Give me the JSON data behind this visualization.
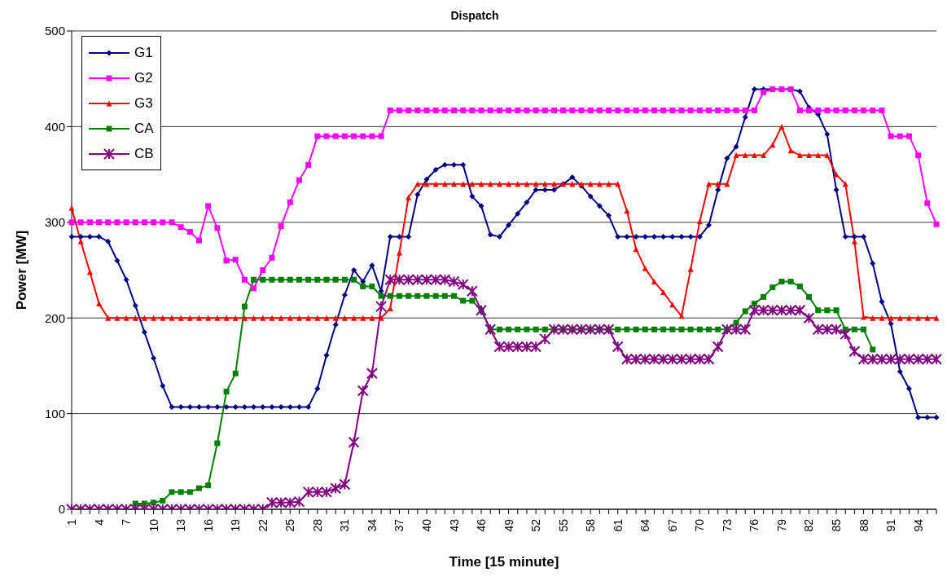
{
  "chart_data": {
    "type": "line",
    "title": "Dispatch",
    "xlabel": "Time [15 minute]",
    "ylabel": "Power [MW]",
    "categories": [
      "1",
      null,
      null,
      "4",
      null,
      null,
      "7",
      null,
      null,
      "10",
      null,
      null,
      "13",
      null,
      null,
      "16",
      null,
      null,
      "19",
      null,
      null,
      "22",
      null,
      null,
      "25",
      null,
      null,
      "28",
      null,
      null,
      "31",
      null,
      null,
      "34",
      null,
      null,
      "37",
      null,
      null,
      "40",
      null,
      null,
      "43",
      null,
      null,
      "46",
      null,
      null,
      "49",
      null,
      null,
      "52",
      null,
      null,
      "55",
      null,
      null,
      "58",
      null,
      null,
      "61",
      null,
      null,
      "64",
      null,
      null,
      "67",
      null,
      null,
      "70",
      null,
      null,
      "73",
      null,
      null,
      "76",
      null,
      null,
      "79",
      null,
      null,
      "82",
      null,
      null,
      "85",
      null,
      null,
      "88",
      null,
      null,
      "91",
      null,
      null,
      "94",
      null,
      null
    ],
    "ylim": [
      0,
      500
    ],
    "yticks": [
      0,
      100,
      200,
      300,
      400,
      500
    ],
    "grid": "y",
    "legend": "top left",
    "line_style": "solid",
    "series": [
      {
        "name": "G1",
        "color": "#000080",
        "marker": "diamond",
        "values": [
          285,
          285,
          285,
          285,
          280,
          260,
          240,
          213,
          185,
          158,
          129,
          107,
          107,
          107,
          107,
          107,
          107,
          107,
          107,
          107,
          107,
          107,
          107,
          107,
          107,
          107,
          107,
          126,
          161,
          193,
          224,
          250,
          238,
          255,
          228,
          285,
          285,
          285,
          329,
          345,
          355,
          360,
          360,
          360,
          327,
          317,
          287,
          285,
          297,
          309,
          321,
          334,
          334,
          334,
          340,
          347,
          338,
          327,
          317,
          307,
          285,
          285,
          285,
          285,
          285,
          285,
          285,
          285,
          285,
          285,
          297,
          334,
          367,
          379,
          410,
          439,
          439,
          439,
          439,
          439,
          437,
          420,
          413,
          392,
          334,
          285,
          285,
          285,
          257,
          217,
          194,
          144,
          126,
          96,
          96,
          96
        ]
      },
      {
        "name": "G2",
        "color": "#ff00ff",
        "marker": "square",
        "values": [
          300,
          300,
          300,
          300,
          300,
          300,
          300,
          300,
          300,
          300,
          300,
          300,
          295,
          290,
          281,
          317,
          294,
          260,
          261,
          240,
          231,
          250,
          263,
          296,
          321,
          344,
          360,
          390,
          390,
          390,
          390,
          390,
          390,
          390,
          390,
          417,
          417,
          417,
          417,
          417,
          417,
          417,
          417,
          417,
          417,
          417,
          417,
          417,
          417,
          417,
          417,
          417,
          417,
          417,
          417,
          417,
          417,
          417,
          417,
          417,
          417,
          417,
          417,
          417,
          417,
          417,
          417,
          417,
          417,
          417,
          417,
          417,
          417,
          417,
          417,
          417,
          436,
          439,
          439,
          439,
          417,
          417,
          417,
          417,
          417,
          417,
          417,
          417,
          417,
          417,
          390,
          390,
          390,
          370,
          320,
          298
        ]
      },
      {
        "name": "G3",
        "color": "#ff0000",
        "marker": "triangle",
        "values": [
          315,
          280,
          248,
          215,
          200,
          200,
          200,
          200,
          200,
          200,
          200,
          200,
          200,
          200,
          200,
          200,
          200,
          200,
          200,
          200,
          200,
          200,
          200,
          200,
          200,
          200,
          200,
          200,
          200,
          200,
          200,
          200,
          200,
          200,
          200,
          210,
          268,
          326,
          340,
          340,
          340,
          340,
          340,
          340,
          340,
          340,
          340,
          340,
          340,
          340,
          340,
          340,
          340,
          340,
          340,
          340,
          340,
          340,
          340,
          340,
          340,
          312,
          272,
          252,
          238,
          227,
          214,
          202,
          251,
          301,
          340,
          340,
          340,
          370,
          370,
          370,
          370,
          381,
          400,
          375,
          370,
          370,
          370,
          370,
          350,
          340,
          280,
          201,
          200,
          200,
          200,
          200,
          200,
          200,
          200,
          200
        ]
      },
      {
        "name": "CA",
        "color": "#008000",
        "marker": "square",
        "values": [
          null,
          null,
          null,
          null,
          null,
          null,
          null,
          6,
          6,
          7,
          9,
          18,
          18,
          18,
          22,
          25,
          69,
          123,
          142,
          212,
          240,
          240,
          240,
          240,
          240,
          240,
          240,
          240,
          240,
          240,
          240,
          240,
          233,
          233,
          223,
          223,
          223,
          223,
          223,
          223,
          223,
          223,
          223,
          218,
          218,
          208,
          188,
          188,
          188,
          188,
          188,
          188,
          188,
          188,
          188,
          188,
          188,
          188,
          188,
          188,
          188,
          188,
          188,
          188,
          188,
          188,
          188,
          188,
          188,
          188,
          188,
          188,
          188,
          195,
          207,
          215,
          222,
          232,
          238,
          238,
          233,
          222,
          208,
          208,
          208,
          188,
          188,
          188,
          167,
          null,
          null,
          null,
          null,
          null,
          null,
          null
        ]
      },
      {
        "name": "CB",
        "color": "#800080",
        "marker": "cross",
        "values": [
          0,
          0,
          0,
          0,
          0,
          0,
          0,
          0,
          0,
          0,
          0,
          0,
          0,
          0,
          0,
          0,
          0,
          0,
          0,
          0,
          0,
          0,
          7,
          7,
          7,
          8,
          18,
          18,
          18,
          22,
          26,
          70,
          124,
          142,
          212,
          240,
          240,
          240,
          240,
          240,
          240,
          240,
          238,
          235,
          228,
          208,
          188,
          170,
          170,
          170,
          170,
          170,
          178,
          188,
          188,
          188,
          188,
          188,
          188,
          188,
          170,
          157,
          157,
          157,
          157,
          157,
          157,
          157,
          157,
          157,
          157,
          170,
          188,
          188,
          188,
          208,
          208,
          208,
          208,
          208,
          208,
          200,
          188,
          188,
          188,
          183,
          165,
          157,
          157,
          157,
          157,
          157,
          157,
          157,
          157,
          157
        ]
      }
    ]
  }
}
